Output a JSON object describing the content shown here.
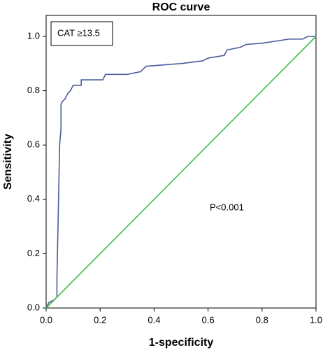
{
  "chart_data": {
    "type": "line",
    "title": "ROC curve",
    "x_label": "1-specificity",
    "y_label": "Sensitivity",
    "annotations": [
      "CAT ≥13.5",
      "P<0.001"
    ],
    "xlim": [
      0,
      1
    ],
    "ylim": [
      0,
      1
    ],
    "xticks": [
      {
        "value": 0,
        "label": "0.0"
      },
      0.2,
      0.4,
      0.6,
      0.8,
      {
        "value": 1,
        "label": "1.0"
      }
    ],
    "yticks": [
      {
        "value": 0,
        "label": "0.0"
      },
      0.2,
      0.4,
      0.6,
      0.8,
      {
        "value": 1,
        "label": "1.0"
      }
    ],
    "series": [
      {
        "color": "#4a5c9c",
        "x": [
          0,
          0.01,
          0.03,
          0.04,
          0.04,
          0.045,
          0.05,
          0.055,
          0.055,
          0.06,
          0.07,
          0.08,
          0.09,
          0.1,
          0.13,
          0.13,
          0.21,
          0.22,
          0.3,
          0.35,
          0.37,
          0.5,
          0.58,
          0.6,
          0.66,
          0.67,
          0.72,
          0.74,
          0.8,
          0.9,
          0.95,
          0.97,
          1
        ],
        "values": [
          0,
          0.02,
          0.03,
          0.04,
          0.11,
          0.35,
          0.6,
          0.66,
          0.75,
          0.76,
          0.77,
          0.79,
          0.8,
          0.82,
          0.82,
          0.84,
          0.84,
          0.86,
          0.86,
          0.87,
          0.89,
          0.9,
          0.91,
          0.92,
          0.93,
          0.95,
          0.96,
          0.97,
          0.975,
          0.99,
          0.99,
          1,
          1
        ]
      },
      {
        "color": "#3dbf4a",
        "x": [
          0,
          1
        ],
        "values": [
          0,
          1
        ]
      }
    ]
  }
}
